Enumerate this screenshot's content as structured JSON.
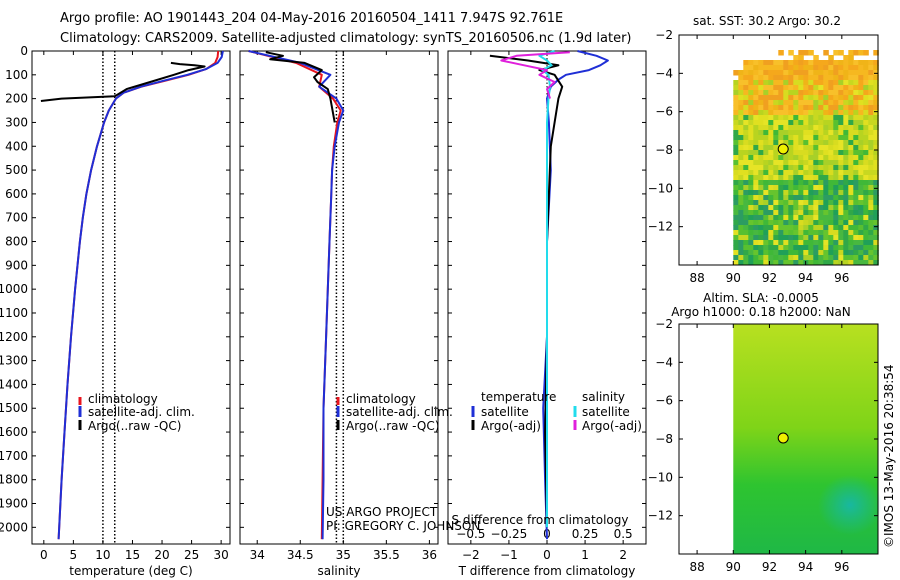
{
  "header": {
    "line1": "Argo profile: AO 1901443_204 04-May-2016 20160504_1411 7.947S 92.761E",
    "line2": "Climatology: CARS2009. Satellite-adjusted climatology: synTS_20160506.nc (1.9d later)"
  },
  "colors": {
    "clim": "#e8141e",
    "sat": "#1f2fd6",
    "argo": "#000000",
    "sal_sat": "#22dcec",
    "sal_argo": "#e020dc"
  },
  "chart_data": [
    {
      "id": "temperature",
      "type": "line",
      "xlabel": "temperature (deg C)",
      "xlim": [
        -2,
        31.5
      ],
      "ylim": [
        2070,
        0
      ],
      "xticks": [
        0,
        5,
        10,
        15,
        20,
        25,
        30
      ],
      "yticks": [
        0,
        100,
        200,
        300,
        400,
        500,
        600,
        700,
        800,
        900,
        1000,
        1100,
        1200,
        1300,
        1400,
        1500,
        1600,
        1700,
        1800,
        1900,
        2000
      ],
      "legend": [
        "climatology",
        "satellite-adj. clim.",
        "Argo(..raw -QC)"
      ],
      "legend_position": "lower-right",
      "series": [
        {
          "name": "climatology",
          "depth": [
            0,
            25,
            50,
            75,
            100,
            125,
            150,
            175,
            200,
            250,
            300,
            400,
            500,
            600,
            700,
            800,
            900,
            1000,
            1200,
            1400,
            1600,
            1800,
            2000,
            2050
          ],
          "values": [
            29.5,
            29.4,
            29.0,
            27.5,
            24.5,
            20.5,
            16.5,
            13.5,
            12.2,
            11.0,
            10.2,
            9.0,
            8.0,
            7.2,
            6.6,
            6.1,
            5.7,
            5.3,
            4.6,
            4.0,
            3.5,
            3.0,
            2.6,
            2.5
          ]
        },
        {
          "name": "satellite-adj. clim.",
          "depth": [
            0,
            25,
            50,
            75,
            100,
            125,
            150,
            175,
            200,
            250,
            300,
            400,
            500,
            600,
            700,
            800,
            900,
            1000,
            1200,
            1400,
            1600,
            1800,
            2000,
            2050
          ],
          "values": [
            30.3,
            30.1,
            29.4,
            27.5,
            24.3,
            20.2,
            16.4,
            13.5,
            12.2,
            11.0,
            10.2,
            9.0,
            8.0,
            7.2,
            6.6,
            6.1,
            5.7,
            5.3,
            4.6,
            4.0,
            3.5,
            3.0,
            2.6,
            2.5
          ]
        },
        {
          "name": "Argo(..raw -QC)",
          "depth": [
            50,
            55,
            60,
            65,
            80,
            100,
            130,
            160,
            190,
            200,
            210
          ],
          "values": [
            21.5,
            23.0,
            25.5,
            27.2,
            24.5,
            22.0,
            18.0,
            14.0,
            12.0,
            3.0,
            -0.5
          ]
        }
      ],
      "reference_lines": [
        {
          "axis": "x",
          "value": 10
        },
        {
          "axis": "x",
          "value": 12
        }
      ]
    },
    {
      "id": "salinity",
      "type": "line",
      "xlabel": "salinity",
      "xlim": [
        33.8,
        36.1
      ],
      "ylim": [
        2070,
        0
      ],
      "xticks": [
        34,
        34.5,
        35,
        35.5,
        36
      ],
      "xtick_labels": [
        "34",
        "34.5",
        "35",
        "35.5",
        "36"
      ],
      "legend": [
        "climatology",
        "satellite-adj. clim.",
        "Argo(..raw -QC)"
      ],
      "legend_position": "lower-right",
      "series": [
        {
          "name": "climatology",
          "depth": [
            0,
            50,
            100,
            150,
            200,
            250,
            300,
            400,
            500,
            600,
            800,
            1000,
            1200,
            1500,
            1800,
            2050
          ],
          "values": [
            33.9,
            34.45,
            34.75,
            34.72,
            34.88,
            34.97,
            34.93,
            34.89,
            34.87,
            34.86,
            34.84,
            34.82,
            34.8,
            34.77,
            34.76,
            34.75
          ]
        },
        {
          "name": "satellite-adj. clim.",
          "depth": [
            0,
            50,
            100,
            150,
            200,
            250,
            300,
            400,
            500,
            600,
            800,
            1000,
            1200,
            1500,
            1800,
            2050
          ],
          "values": [
            33.9,
            34.5,
            34.85,
            34.72,
            34.92,
            35.0,
            34.95,
            34.9,
            34.87,
            34.86,
            34.84,
            34.82,
            34.8,
            34.77,
            34.77,
            34.76
          ]
        },
        {
          "name": "Argo(..raw -QC)",
          "depth": [
            5,
            20,
            35,
            50,
            80,
            110,
            130,
            160,
            200,
            300
          ],
          "values": [
            34.1,
            34.3,
            34.15,
            34.55,
            34.75,
            34.66,
            34.7,
            34.82,
            34.85,
            34.9
          ]
        }
      ],
      "reference_lines": [
        {
          "axis": "x",
          "value": 35.0
        },
        {
          "axis": "x",
          "value": 34.92
        }
      ],
      "annotation": [
        "US ARGO PROJECT",
        "PI: GREGORY C. JOHNSON"
      ]
    },
    {
      "id": "difference",
      "type": "line",
      "xlabel": "T difference from climatology",
      "xlabel_top": "S difference from climatology",
      "xlim": [
        -2.6,
        2.6
      ],
      "ylim": [
        2070,
        0
      ],
      "xticks": [
        -2,
        -1,
        0,
        1,
        2
      ],
      "xtick_labels": [
        "−2",
        "−1",
        "0",
        "1",
        "2"
      ],
      "sticks": [
        -0.5,
        -0.25,
        0,
        0.25,
        0.5
      ],
      "stick_labels": [
        "−0.5",
        "−0.25",
        "0",
        "0.25",
        "0.5"
      ],
      "s_scale": 4,
      "legend_temperature_title": "temperature",
      "legend_salinity_title": "salinity",
      "legend_temperature": [
        "satellite",
        "Argo(-adj)"
      ],
      "legend_salinity": [
        "satellite",
        "Argo(-adj)"
      ],
      "series": [
        {
          "name": "temperature satellite",
          "depth": [
            0,
            20,
            40,
            60,
            80,
            100,
            120,
            150,
            200,
            300,
            500,
            800,
            1200,
            1500,
            1800,
            2050
          ],
          "values": [
            0.8,
            1.3,
            1.6,
            1.4,
            1.1,
            0.5,
            0.3,
            0.1,
            0.0,
            0.05,
            0.1,
            0.0,
            0.0,
            -0.1,
            -0.05,
            0.0
          ]
        },
        {
          "name": "temperature Argo(-adj)",
          "depth": [
            20,
            40,
            60,
            80,
            100,
            150,
            200,
            400,
            800,
            1200,
            1600,
            2000
          ],
          "values": [
            -1.5,
            -0.5,
            0.3,
            -0.2,
            0.2,
            0.4,
            0.3,
            0.1,
            0.0,
            0.0,
            -0.05,
            0.0
          ]
        },
        {
          "name": "salinity satellite",
          "depth": [
            0,
            20,
            40,
            60,
            80,
            100,
            150,
            200,
            300,
            500,
            800,
            1200,
            1600,
            2000
          ],
          "values": [
            0.05,
            -0.05,
            0.0,
            0.03,
            -0.03,
            0.01,
            0.02,
            0.01,
            0.0,
            0.0,
            0.0,
            0.0,
            0.0,
            0.0
          ]
        },
        {
          "name": "salinity Argo(-adj)",
          "depth": [
            5,
            20,
            40,
            60,
            80,
            100,
            130,
            160,
            200
          ],
          "values": [
            0.15,
            -0.2,
            -0.3,
            -0.15,
            0.0,
            -0.05,
            0.05,
            0.0,
            0.02
          ]
        }
      ]
    },
    {
      "id": "sst_map",
      "type": "heatmap",
      "title": "sat. SST: 30.2 Argo: 30.2",
      "xlim": [
        87,
        98
      ],
      "ylim": [
        -14,
        -2
      ],
      "xticks": [
        88,
        90,
        92,
        94,
        96
      ],
      "yticks": [
        -2,
        -4,
        -6,
        -8,
        -10,
        -12
      ],
      "ytick_labels": [
        "−2",
        "−4",
        "−6",
        "−8",
        "−10",
        "−12"
      ],
      "data_lon_range": [
        90,
        98
      ],
      "float_position": [
        92.76,
        -7.95
      ]
    },
    {
      "id": "sla_map",
      "type": "heatmap",
      "title": "Altim. SLA: -0.0005",
      "subtitle": "Argo h1000: 0.18 h2000: NaN",
      "xlim": [
        87,
        98
      ],
      "ylim": [
        -14,
        -2
      ],
      "xticks": [
        88,
        90,
        92,
        94,
        96
      ],
      "yticks": [
        -2,
        -4,
        -6,
        -8,
        -10,
        -12
      ],
      "ytick_labels": [
        "−2",
        "−4",
        "−6",
        "−8",
        "−10",
        "−12"
      ],
      "data_lon_range": [
        90,
        98
      ],
      "float_position": [
        92.76,
        -7.95
      ]
    }
  ],
  "side_label": "©IMOS 13-May-2016 20:38:54"
}
